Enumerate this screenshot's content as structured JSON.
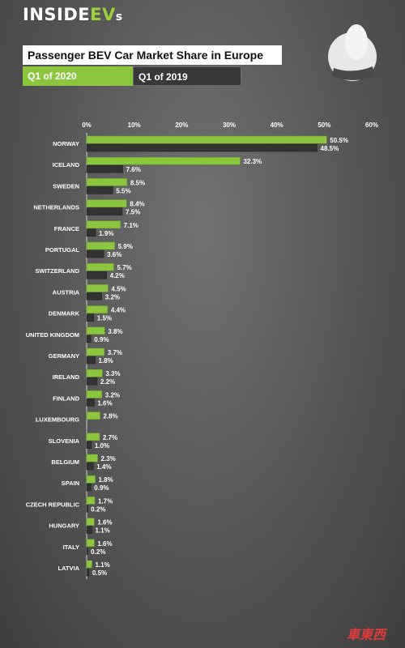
{
  "brand": {
    "logo_text": "INSIDEEVs"
  },
  "title": "Passenger BEV Car Market Share in Europe",
  "legend": {
    "current": "Q1 of 2020",
    "previous": "Q1 of 2019"
  },
  "watermark": {
    "text": "車東西"
  },
  "colors": {
    "current": "#8cc63f",
    "previous": "#333333"
  },
  "chart_data": {
    "type": "bar",
    "orientation": "horizontal",
    "title": "Passenger BEV Car Market Share in Europe",
    "x_ticks": [
      "0%",
      "10%",
      "20%",
      "30%",
      "40%",
      "50%",
      "60%"
    ],
    "xlim": [
      0,
      60
    ],
    "categories": [
      "NORWAY",
      "ICELAND",
      "SWEDEN",
      "NETHERLANDS",
      "FRANCE",
      "PORTUGAL",
      "SWITZERLAND",
      "AUSTRIA",
      "DENMARK",
      "UNITED KINGDOM",
      "GERMANY",
      "IRELAND",
      "FINLAND",
      "LUXEMBOURG",
      "SLOVENIA",
      "BELGIUM",
      "SPAIN",
      "CZECH REPUBLIC",
      "HUNGARY",
      "ITALY",
      "LATVIA"
    ],
    "series": [
      {
        "name": "Q1 of 2020",
        "values": [
          50.5,
          32.3,
          8.5,
          8.4,
          7.1,
          5.9,
          5.7,
          4.5,
          4.4,
          3.8,
          3.7,
          3.3,
          3.2,
          2.8,
          2.7,
          2.3,
          1.8,
          1.7,
          1.6,
          1.6,
          1.1
        ]
      },
      {
        "name": "Q1 of 2019",
        "values": [
          48.5,
          7.6,
          5.5,
          7.5,
          1.9,
          3.6,
          4.2,
          3.2,
          1.5,
          0.9,
          1.8,
          2.2,
          1.6,
          null,
          1.0,
          1.4,
          0.9,
          0.2,
          1.1,
          0.2,
          0.5
        ]
      }
    ],
    "value_unit": "%"
  }
}
